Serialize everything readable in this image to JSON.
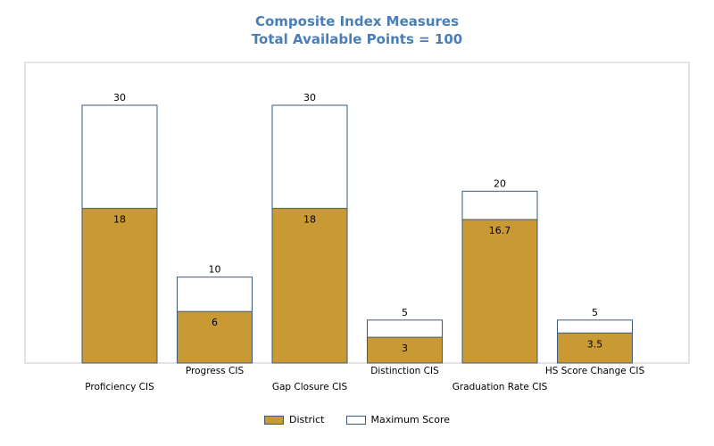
{
  "chart_data": {
    "type": "bar",
    "title": "Composite Index Measures",
    "subtitle": "Total Available Points = 100",
    "categories": [
      "Proficiency CIS",
      "Progress CIS",
      "Gap Closure CIS",
      "Distinction CIS",
      "Graduation Rate CIS",
      "HS Score Change CIS"
    ],
    "series": [
      {
        "name": "District",
        "values": [
          18,
          6,
          18,
          3,
          16.7,
          3.5
        ],
        "labels": [
          "18",
          "6",
          "18",
          "3",
          "16.7",
          "3.5"
        ],
        "color": "#c99a33"
      },
      {
        "name": "Maximum Score",
        "values": [
          30,
          10,
          30,
          5,
          20,
          5
        ],
        "labels": [
          "30",
          "10",
          "30",
          "5",
          "20",
          "5"
        ],
        "color": "#ffffff"
      }
    ],
    "ylim": [
      0,
      30
    ],
    "grid": false,
    "legend": "bottom-center",
    "bar_outline_color": "#3b5a7a"
  }
}
